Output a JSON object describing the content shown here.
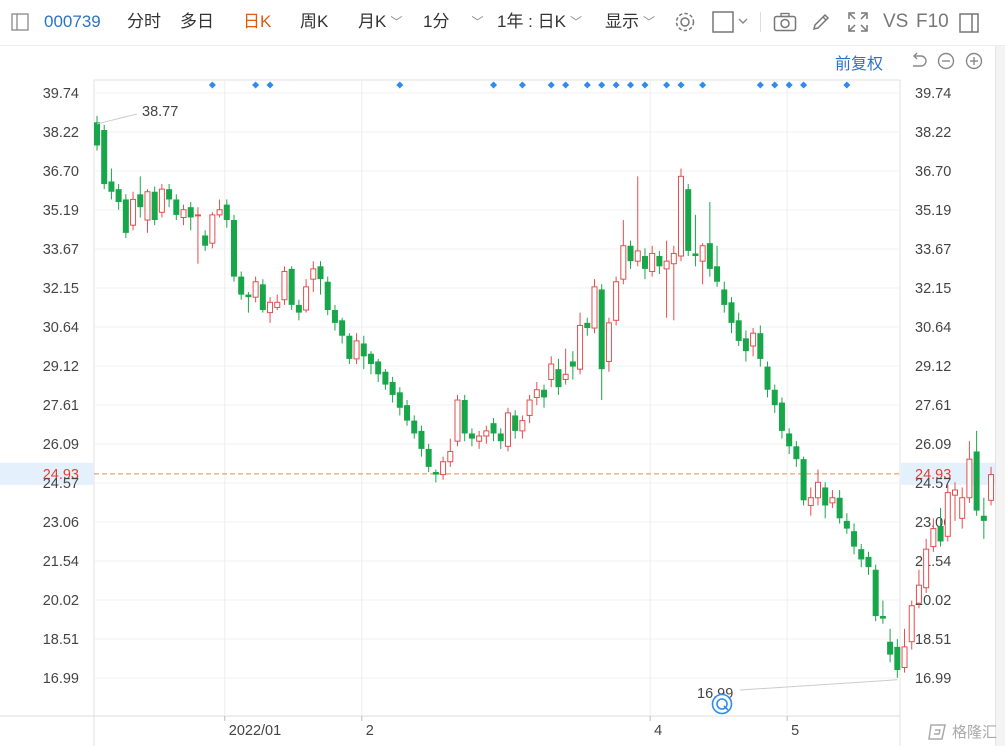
{
  "toolbar": {
    "code": "000739",
    "tabs": [
      {
        "label": "分时",
        "active": false
      },
      {
        "label": "多日",
        "active": false
      },
      {
        "label": "日K",
        "active": true
      },
      {
        "label": "周K",
        "active": false
      },
      {
        "label": "月K",
        "active": false,
        "dropdown": true
      },
      {
        "label": "1分",
        "active": false,
        "dropdown": true
      }
    ],
    "range_select": "1年 : 日K",
    "display_select": "显示",
    "vs_label": "VS",
    "f10_label": "F10",
    "icons": [
      "settings-icon",
      "checkbox-icon",
      "camera-icon",
      "pencil-icon",
      "fullscreen-icon",
      "panel-icon"
    ]
  },
  "subbar": {
    "adjust_label": "前复权",
    "icons": [
      "undo-icon",
      "zoom-out-icon",
      "zoom-in-icon"
    ]
  },
  "watermark": "格隆汇",
  "chart_data": {
    "type": "candlestick",
    "y_ticks": [
      "39.74",
      "38.22",
      "36.70",
      "35.19",
      "33.67",
      "32.15",
      "30.64",
      "29.12",
      "27.61",
      "26.09",
      "24.57",
      "23.06",
      "21.54",
      "20.02",
      "18.51",
      "16.99"
    ],
    "ylim": [
      16.99,
      39.74
    ],
    "x_labels": [
      {
        "label": "2022/01",
        "index": 18
      },
      {
        "label": "2",
        "index": 37
      },
      {
        "label": "4",
        "index": 77
      },
      {
        "label": "5",
        "index": 96
      }
    ],
    "current_price": "24.93",
    "max_label": "38.77",
    "min_label": "16.99",
    "up_color": "#e64d4d",
    "down_color": "#18a64a",
    "marker_color": "#2d8cf0",
    "event_markers": [
      16,
      22,
      24,
      42,
      55,
      59,
      63,
      65,
      68,
      70,
      72,
      74,
      76,
      79,
      81,
      84,
      92,
      94,
      96,
      98,
      104
    ],
    "candles": [
      [
        38.6,
        37.7,
        38.85,
        37.5
      ],
      [
        38.3,
        36.2,
        38.5,
        36.0
      ],
      [
        36.3,
        35.9,
        36.8,
        35.6
      ],
      [
        36.0,
        35.5,
        36.2,
        35.2
      ],
      [
        35.6,
        34.3,
        35.8,
        34.1
      ],
      [
        34.6,
        35.6,
        35.9,
        34.4
      ],
      [
        35.8,
        35.3,
        36.5,
        34.9
      ],
      [
        34.8,
        35.9,
        36.0,
        34.3
      ],
      [
        35.9,
        34.8,
        36.1,
        34.6
      ],
      [
        35.1,
        36.0,
        36.2,
        34.9
      ],
      [
        36.0,
        35.6,
        36.2,
        35.3
      ],
      [
        35.6,
        35.0,
        35.8,
        34.8
      ],
      [
        34.9,
        35.2,
        35.4,
        34.6
      ],
      [
        35.3,
        34.9,
        35.5,
        34.4
      ],
      [
        35.0,
        35.0,
        35.3,
        33.1
      ],
      [
        34.2,
        33.8,
        34.4,
        33.6
      ],
      [
        33.9,
        35.0,
        35.1,
        33.7
      ],
      [
        35.0,
        35.2,
        35.6,
        34.9
      ],
      [
        35.4,
        34.8,
        35.6,
        34.5
      ],
      [
        34.8,
        32.6,
        35.0,
        32.4
      ],
      [
        32.6,
        31.9,
        32.8,
        31.7
      ],
      [
        31.9,
        31.8,
        32.0,
        31.2
      ],
      [
        31.8,
        32.4,
        32.6,
        31.6
      ],
      [
        32.3,
        31.3,
        32.5,
        31.2
      ],
      [
        31.2,
        31.6,
        31.8,
        30.8
      ],
      [
        31.4,
        31.6,
        31.9,
        31.3
      ],
      [
        31.7,
        32.8,
        33.0,
        31.5
      ],
      [
        32.9,
        31.5,
        33.0,
        31.3
      ],
      [
        31.5,
        31.2,
        31.7,
        30.9
      ],
      [
        31.3,
        32.2,
        32.5,
        31.2
      ],
      [
        32.5,
        32.9,
        33.2,
        32.0
      ],
      [
        33.0,
        32.5,
        33.2,
        31.9
      ],
      [
        32.4,
        31.3,
        32.6,
        31.1
      ],
      [
        31.3,
        30.8,
        31.5,
        30.5
      ],
      [
        30.9,
        30.3,
        31.0,
        30.0
      ],
      [
        30.3,
        29.4,
        30.4,
        29.2
      ],
      [
        29.4,
        30.1,
        30.4,
        29.2
      ],
      [
        30.0,
        29.5,
        30.3,
        29.0
      ],
      [
        29.6,
        29.2,
        29.7,
        28.8
      ],
      [
        29.3,
        28.8,
        29.4,
        28.5
      ],
      [
        28.9,
        28.4,
        29.0,
        28.2
      ],
      [
        28.5,
        28.0,
        28.7,
        27.7
      ],
      [
        28.1,
        27.5,
        28.3,
        27.2
      ],
      [
        27.6,
        27.0,
        27.8,
        26.8
      ],
      [
        27.0,
        26.5,
        27.2,
        26.3
      ],
      [
        26.6,
        25.9,
        26.8,
        25.6
      ],
      [
        25.9,
        25.2,
        26.1,
        25.0
      ],
      [
        25.0,
        24.9,
        25.1,
        24.6
      ],
      [
        24.9,
        25.4,
        25.6,
        24.7
      ],
      [
        25.4,
        25.8,
        26.3,
        25.2
      ],
      [
        26.2,
        27.8,
        28.0,
        26.0
      ],
      [
        27.8,
        26.5,
        28.0,
        26.2
      ],
      [
        26.5,
        26.3,
        26.7,
        26.0
      ],
      [
        26.2,
        26.4,
        26.6,
        25.9
      ],
      [
        26.4,
        26.6,
        26.8,
        26.1
      ],
      [
        26.9,
        26.5,
        27.1,
        26.2
      ],
      [
        26.5,
        26.2,
        26.7,
        25.9
      ],
      [
        26.0,
        27.3,
        27.5,
        25.8
      ],
      [
        27.2,
        26.6,
        27.4,
        26.3
      ],
      [
        26.6,
        27.0,
        27.2,
        26.3
      ],
      [
        27.2,
        27.8,
        28.0,
        26.9
      ],
      [
        27.9,
        28.2,
        28.5,
        27.6
      ],
      [
        28.2,
        27.9,
        28.4,
        27.5
      ],
      [
        28.6,
        29.2,
        29.5,
        28.3
      ],
      [
        29.0,
        28.3,
        29.4,
        28.0
      ],
      [
        28.6,
        28.8,
        29.8,
        28.4
      ],
      [
        29.3,
        29.1,
        29.7,
        28.6
      ],
      [
        29.0,
        30.7,
        31.2,
        28.8
      ],
      [
        30.8,
        30.6,
        31.0,
        30.3
      ],
      [
        30.6,
        32.2,
        32.5,
        30.4
      ],
      [
        32.1,
        29.0,
        32.3,
        27.8
      ],
      [
        29.3,
        30.8,
        31.0,
        28.9
      ],
      [
        30.9,
        32.4,
        32.6,
        30.7
      ],
      [
        32.5,
        33.8,
        34.8,
        32.3
      ],
      [
        33.8,
        33.2,
        34.0,
        32.9
      ],
      [
        33.2,
        33.6,
        36.5,
        33.0
      ],
      [
        33.4,
        32.9,
        33.7,
        32.5
      ],
      [
        32.8,
        33.5,
        33.8,
        32.6
      ],
      [
        33.4,
        33.0,
        33.6,
        32.7
      ],
      [
        32.9,
        33.2,
        34.0,
        31.0
      ],
      [
        33.1,
        33.5,
        33.8,
        30.9
      ],
      [
        33.4,
        36.5,
        36.8,
        33.2
      ],
      [
        36.0,
        33.6,
        36.2,
        33.4
      ],
      [
        33.5,
        33.4,
        35.0,
        33.0
      ],
      [
        33.2,
        33.8,
        33.9,
        32.3
      ],
      [
        33.9,
        32.9,
        35.5,
        32.6
      ],
      [
        33.0,
        32.4,
        33.8,
        32.2
      ],
      [
        32.1,
        31.5,
        32.4,
        31.2
      ],
      [
        31.6,
        30.8,
        31.8,
        30.4
      ],
      [
        30.9,
        30.1,
        31.2,
        29.9
      ],
      [
        30.2,
        29.7,
        30.5,
        29.3
      ],
      [
        29.9,
        30.4,
        30.6,
        29.5
      ],
      [
        30.4,
        29.4,
        30.7,
        29.1
      ],
      [
        29.1,
        28.2,
        29.3,
        27.9
      ],
      [
        28.2,
        27.6,
        28.4,
        27.3
      ],
      [
        27.7,
        26.6,
        27.9,
        26.3
      ],
      [
        26.5,
        26.0,
        26.7,
        25.7
      ],
      [
        26.0,
        25.5,
        26.2,
        25.2
      ],
      [
        25.5,
        23.9,
        25.6,
        23.7
      ],
      [
        23.7,
        24.0,
        24.4,
        23.3
      ],
      [
        24.0,
        24.6,
        25.1,
        23.7
      ],
      [
        24.4,
        23.7,
        24.6,
        23.2
      ],
      [
        23.8,
        24.0,
        24.3,
        23.6
      ],
      [
        24.0,
        23.2,
        24.3,
        23.0
      ],
      [
        23.1,
        22.8,
        23.4,
        22.6
      ],
      [
        22.7,
        22.1,
        23.0,
        21.8
      ],
      [
        22.0,
        21.6,
        22.2,
        21.3
      ],
      [
        21.7,
        21.3,
        21.9,
        21.0
      ],
      [
        21.2,
        19.4,
        21.4,
        19.2
      ],
      [
        19.4,
        19.3,
        20.0,
        19.1
      ],
      [
        18.4,
        17.9,
        18.9,
        17.6
      ],
      [
        18.2,
        17.3,
        18.5,
        17.0
      ],
      [
        17.4,
        18.2,
        18.9,
        17.2
      ],
      [
        18.4,
        19.8,
        20.0,
        18.1
      ],
      [
        19.9,
        20.6,
        21.2,
        19.7
      ],
      [
        20.5,
        22.0,
        22.4,
        20.3
      ],
      [
        22.1,
        22.8,
        23.2,
        21.9
      ],
      [
        22.9,
        22.3,
        23.6,
        22.1
      ],
      [
        22.5,
        24.2,
        24.5,
        22.3
      ],
      [
        24.1,
        24.3,
        24.6,
        23.1
      ],
      [
        23.2,
        24.0,
        24.4,
        22.8
      ],
      [
        24.0,
        25.5,
        26.2,
        23.8
      ],
      [
        25.8,
        23.5,
        26.6,
        23.3
      ],
      [
        23.3,
        23.1,
        24.0,
        22.4
      ],
      [
        23.9,
        24.9,
        25.2,
        23.7
      ]
    ]
  }
}
